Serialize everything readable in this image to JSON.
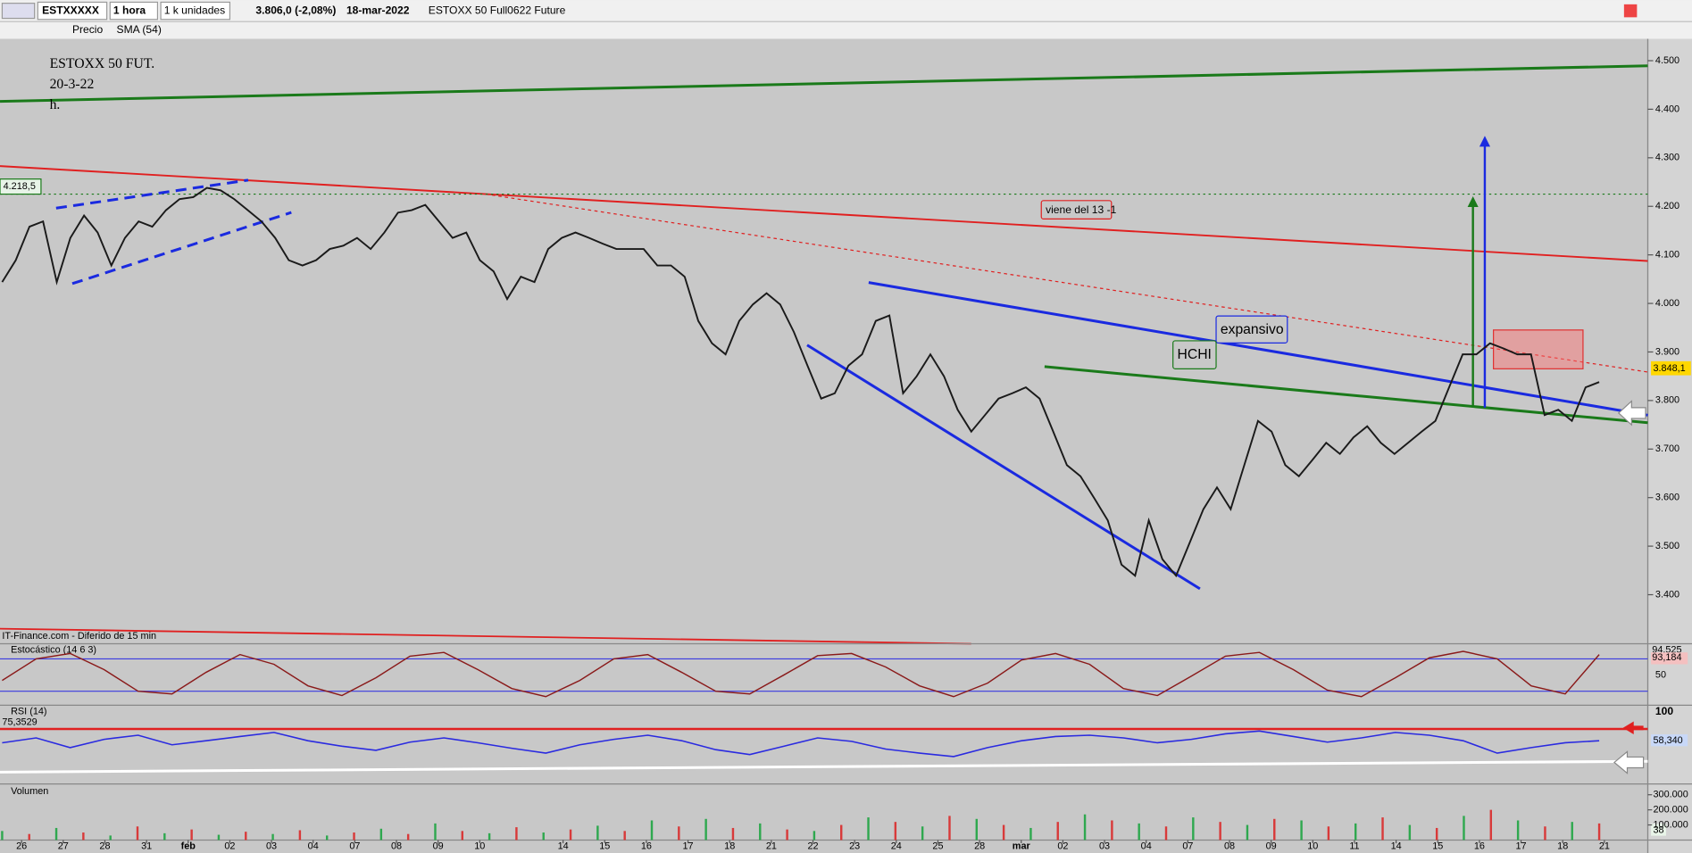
{
  "toolbar": {
    "symbol": "ESTXXXXX",
    "interval": "1 hora",
    "units": "1 k unidades",
    "last": "3.806,0 (-2,08%)",
    "date": "18-mar-2022",
    "instrument": "ESTOXX 50 Full0622 Future",
    "studies": [
      "Precio",
      "SMA (54)"
    ]
  },
  "chart": {
    "title_lines": [
      "ESTOXX 50 FUT.",
      "20-3-22",
      "h."
    ],
    "annotations": {
      "origin": "viene del 13 -1",
      "expansive": "expansivo",
      "pattern": "HCHI"
    },
    "price_markers": [
      "4.218,5",
      "3.848,1"
    ],
    "source": "IT-Finance.com - Diferido de 15 min",
    "ylim": [
      3330,
      4545
    ],
    "yticks": [
      {
        "value": 3400,
        "label": "3.400"
      },
      {
        "value": 3500,
        "label": "3.500"
      },
      {
        "value": 3600,
        "label": "3.600"
      },
      {
        "value": 3700,
        "label": "3.700"
      },
      {
        "value": 3800,
        "label": "3.800"
      },
      {
        "value": 3900,
        "label": "3.900"
      },
      {
        "value": 4000,
        "label": "4.000"
      },
      {
        "value": 4100,
        "label": "4.100"
      },
      {
        "value": 4200,
        "label": "4.200"
      },
      {
        "value": 4300,
        "label": "4.300"
      },
      {
        "value": 4400,
        "label": "4.400"
      },
      {
        "value": 4500,
        "label": "4.500"
      }
    ],
    "categories": [
      "26",
      "27",
      "28",
      "31",
      "feb",
      "02",
      "03",
      "04",
      "07",
      "08",
      "09",
      "10",
      null,
      "14",
      "15",
      "16",
      "17",
      "18",
      "21",
      "22",
      "23",
      "24",
      "25",
      "28",
      "mar",
      "02",
      "03",
      "04",
      "07",
      "08",
      "09",
      "10",
      "11",
      "14",
      "15",
      "16",
      "17",
      "18",
      "21"
    ],
    "color": "#1a1a1a",
    "price": [
      4044,
      4089,
      4158,
      4169,
      4044,
      4135,
      4181,
      4146,
      4078,
      4135,
      4169,
      4158,
      4192,
      4215,
      4219,
      4238,
      4233,
      4215,
      4192,
      4169,
      4135,
      4089,
      4078,
      4089,
      4112,
      4119,
      4135,
      4112,
      4146,
      4187,
      4192,
      4203,
      4169,
      4135,
      4146,
      4089,
      4066,
      4009,
      4055,
      4044,
      4112,
      4135,
      4146,
      4135,
      4123,
      4112,
      4112,
      4112,
      4078,
      4078,
      4055,
      3964,
      3918,
      3895,
      3964,
      3998,
      4021,
      3998,
      3941,
      3872,
      3804,
      3815,
      3872,
      3895,
      3964,
      3975,
      3815,
      3850,
      3895,
      3850,
      3781,
      3736,
      3770,
      3804,
      3815,
      3827,
      3804,
      3736,
      3667,
      3644,
      3599,
      3553,
      3462,
      3439,
      3553,
      3473,
      3439,
      3507,
      3576,
      3621,
      3576,
      3667,
      3758,
      3736,
      3667,
      3644,
      3678,
      3713,
      3690,
      3724,
      3747,
      3713,
      3690,
      3713,
      3736,
      3758,
      3827,
      3895,
      3895,
      3918,
      3907,
      3895,
      3895,
      3770,
      3781,
      3758,
      3827,
      3838
    ]
  },
  "stochastic": {
    "label": "Estocástico (14 6 3)",
    "ylim": [
      0,
      100
    ],
    "yticks": [
      50
    ],
    "markers": [
      "94,525",
      "93,184"
    ],
    "color": "#8a1a1a",
    "values": [
      40,
      80,
      90,
      60,
      20,
      15,
      55,
      88,
      70,
      30,
      12,
      45,
      85,
      92,
      60,
      25,
      10,
      40,
      80,
      88,
      55,
      20,
      15,
      50,
      86,
      90,
      65,
      30,
      10,
      35,
      78,
      90,
      70,
      25,
      12,
      48,
      85,
      92,
      60,
      22,
      10,
      45,
      82,
      94,
      80,
      30,
      15,
      88
    ]
  },
  "rsi": {
    "label": "RSI (14)",
    "ylim": [
      0,
      100
    ],
    "yticks": [
      100
    ],
    "markers": [
      "75,3529",
      "58,340"
    ],
    "color": "#2a2ae0",
    "values": [
      55,
      62,
      48,
      60,
      66,
      52,
      58,
      64,
      70,
      58,
      50,
      44,
      56,
      62,
      55,
      47,
      40,
      52,
      60,
      66,
      58,
      45,
      38,
      50,
      62,
      57,
      46,
      40,
      35,
      48,
      58,
      64,
      66,
      62,
      55,
      60,
      68,
      72,
      64,
      56,
      62,
      70,
      66,
      58,
      40,
      48,
      55,
      58
    ]
  },
  "volume": {
    "label": "Volumen",
    "ylim": [
      0,
      300000
    ],
    "yticks": [
      {
        "value": 100000,
        "label": "100.000"
      },
      {
        "value": 200000,
        "label": "200.000"
      },
      {
        "value": 300000,
        "label": "300.000"
      }
    ],
    "marker": "38",
    "colors": [
      "#2fa84f",
      "#d83a3a"
    ],
    "values": [
      60000,
      40000,
      80000,
      50000,
      30000,
      90000,
      45000,
      70000,
      35000,
      55000,
      40000,
      65000,
      30000,
      50000,
      75000,
      40000,
      110000,
      60000,
      45000,
      85000,
      50000,
      70000,
      95000,
      60000,
      130000,
      90000,
      140000,
      80000,
      110000,
      70000,
      60000,
      100000,
      150000,
      120000,
      90000,
      160000,
      140000,
      100000,
      80000,
      120000,
      170000,
      130000,
      110000,
      90000,
      150000,
      120000,
      100000,
      140000,
      130000,
      90000,
      110000,
      150000,
      100000,
      80000,
      160000,
      200000,
      130000,
      90000,
      120000,
      110000
    ]
  }
}
